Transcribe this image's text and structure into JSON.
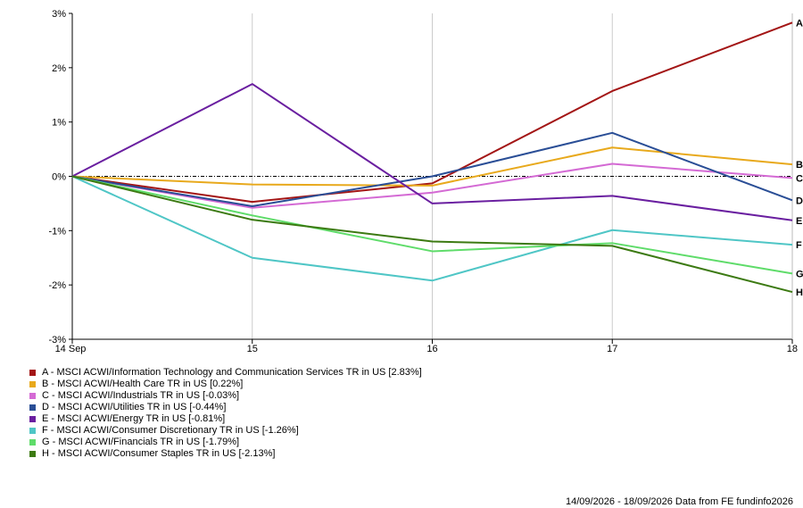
{
  "chart_data": {
    "type": "line",
    "x": [
      "14 Sep",
      "15",
      "16",
      "17",
      "18"
    ],
    "ylim": [
      -3,
      3
    ],
    "yticks": [
      "3%",
      "2%",
      "1%",
      "0%",
      "-1%",
      "-2%",
      "-3%"
    ],
    "ytick_values": [
      3,
      2,
      1,
      0,
      -1,
      -2,
      -3
    ],
    "grid": "vertical",
    "baseline": 0,
    "series": [
      {
        "label": "A",
        "name": "MSCI ACWI/Information Technology and Communication Services TR in US",
        "return": "2.83%",
        "color": "#a31515",
        "values": [
          0,
          -0.47,
          -0.13,
          1.57,
          2.83
        ]
      },
      {
        "label": "B",
        "name": "MSCI ACWI/Health Care TR in US",
        "return": "0.22%",
        "color": "#e8a91c",
        "values": [
          0,
          -0.15,
          -0.17,
          0.53,
          0.22
        ]
      },
      {
        "label": "C",
        "name": "MSCI ACWI/Industrials TR in US",
        "return": "-0.03%",
        "color": "#d46ad4",
        "values": [
          0,
          -0.58,
          -0.3,
          0.23,
          -0.03
        ]
      },
      {
        "label": "D",
        "name": "MSCI ACWI/Utilities TR in US",
        "return": "-0.44%",
        "color": "#2a4e96",
        "values": [
          0,
          -0.55,
          0.0,
          0.8,
          -0.44
        ]
      },
      {
        "label": "E",
        "name": "MSCI ACWI/Energy TR in US",
        "return": "-0.81%",
        "color": "#6a1fa0",
        "values": [
          0,
          1.7,
          -0.5,
          -0.36,
          -0.81
        ]
      },
      {
        "label": "F",
        "name": "MSCI ACWI/Consumer Discretionary TR in US",
        "return": "-1.26%",
        "color": "#4fc6c6",
        "values": [
          0,
          -1.5,
          -1.92,
          -0.99,
          -1.26
        ]
      },
      {
        "label": "G",
        "name": "MSCI ACWI/Financials TR in US",
        "return": "-1.79%",
        "color": "#5fdc6a",
        "values": [
          0,
          -0.72,
          -1.38,
          -1.23,
          -1.79
        ]
      },
      {
        "label": "H",
        "name": "MSCI ACWI/Consumer Staples TR in US",
        "return": "-2.13%",
        "color": "#3c7a12",
        "values": [
          0,
          -0.8,
          -1.2,
          -1.28,
          -2.13
        ]
      }
    ]
  },
  "legend": {
    "rows": [
      {
        "text": "A - MSCI ACWI/Information Technology and Communication Services TR in US [2.83%]",
        "color": "#a31515"
      },
      {
        "text": "B - MSCI ACWI/Health Care TR in US [0.22%]",
        "color": "#e8a91c"
      },
      {
        "text": "C - MSCI ACWI/Industrials TR in US [-0.03%]",
        "color": "#d46ad4"
      },
      {
        "text": "D - MSCI ACWI/Utilities TR in US [-0.44%]",
        "color": "#2a4e96"
      },
      {
        "text": "E - MSCI ACWI/Energy TR in US [-0.81%]",
        "color": "#6a1fa0"
      },
      {
        "text": "F - MSCI ACWI/Consumer Discretionary TR in US [-1.26%]",
        "color": "#4fc6c6"
      },
      {
        "text": "G - MSCI ACWI/Financials TR in US [-1.79%]",
        "color": "#5fdc6a"
      },
      {
        "text": "H - MSCI ACWI/Consumer Staples TR in US [-2.13%]",
        "color": "#3c7a12"
      }
    ]
  },
  "footer": {
    "text": "14/09/2026 - 18/09/2026 Data from FE fundinfo2026"
  }
}
